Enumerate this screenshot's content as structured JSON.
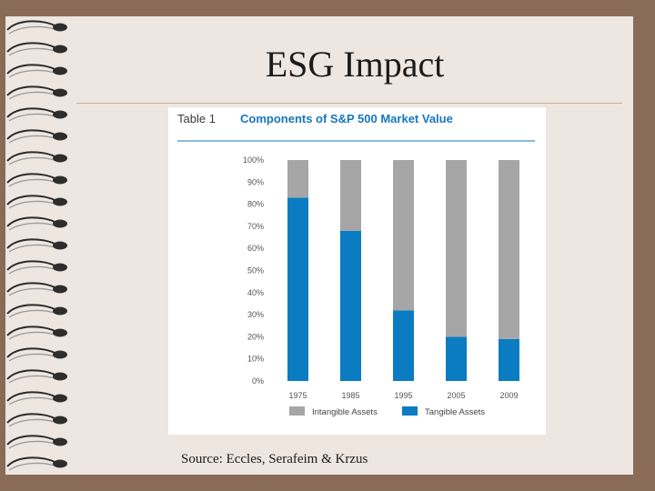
{
  "slide": {
    "title": "ESG Impact",
    "source": "Source: Eccles, Serafeim & Krzus"
  },
  "colors": {
    "tangible": "#0b7cc1",
    "intangible": "#a6a6a6",
    "heading_blue": "#1777bd",
    "slide_bg": "#ede6e1",
    "frame_bg": "#8a6b57"
  },
  "chart_data": {
    "type": "bar",
    "stacked": true,
    "table_label": "Table 1",
    "title": "Components of S&P 500 Market Value",
    "categories": [
      "1975",
      "1985",
      "1995",
      "2005",
      "2009"
    ],
    "series": [
      {
        "name": "Tangible Assets",
        "values": [
          83,
          68,
          32,
          20,
          19
        ]
      },
      {
        "name": "Intangible Assets",
        "values": [
          17,
          32,
          68,
          80,
          81
        ]
      }
    ],
    "legend": [
      "Intangible Assets",
      "Tangible Assets"
    ],
    "legend_position": "bottom",
    "ylim": [
      0,
      100
    ],
    "y_ticks": [
      "0%",
      "10%",
      "20%",
      "30%",
      "40%",
      "50%",
      "60%",
      "70%",
      "80%",
      "90%",
      "100%"
    ],
    "xlabel": "",
    "ylabel": ""
  }
}
